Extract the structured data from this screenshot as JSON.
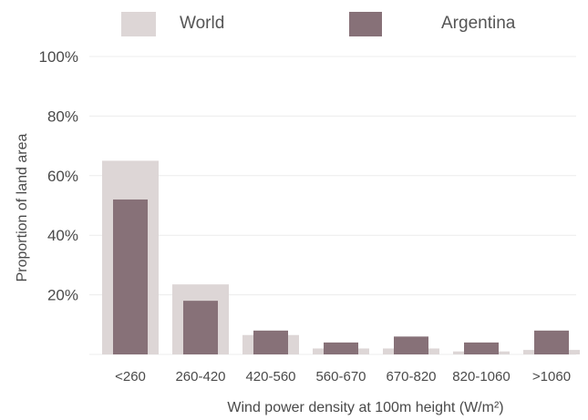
{
  "chart_data": {
    "type": "bar",
    "categories": [
      "<260",
      "260-420",
      "420-560",
      "560-670",
      "670-820",
      "820-1060",
      ">1060"
    ],
    "series": [
      {
        "name": "World",
        "values": [
          65,
          23.5,
          6.5,
          2,
          2,
          1,
          1.5
        ],
        "color": "#ddd6d6"
      },
      {
        "name": "Argentina",
        "values": [
          52,
          18,
          8,
          4,
          6,
          4,
          8
        ],
        "color": "#877178"
      }
    ],
    "xlabel": "Wind power density at 100m height (W/m²)",
    "ylabel": "Proportion of land area",
    "yticks": [
      "20%",
      "40%",
      "60%",
      "80%",
      "100%"
    ],
    "ylim": [
      0,
      100
    ],
    "grid": true,
    "legend_position": "top"
  }
}
